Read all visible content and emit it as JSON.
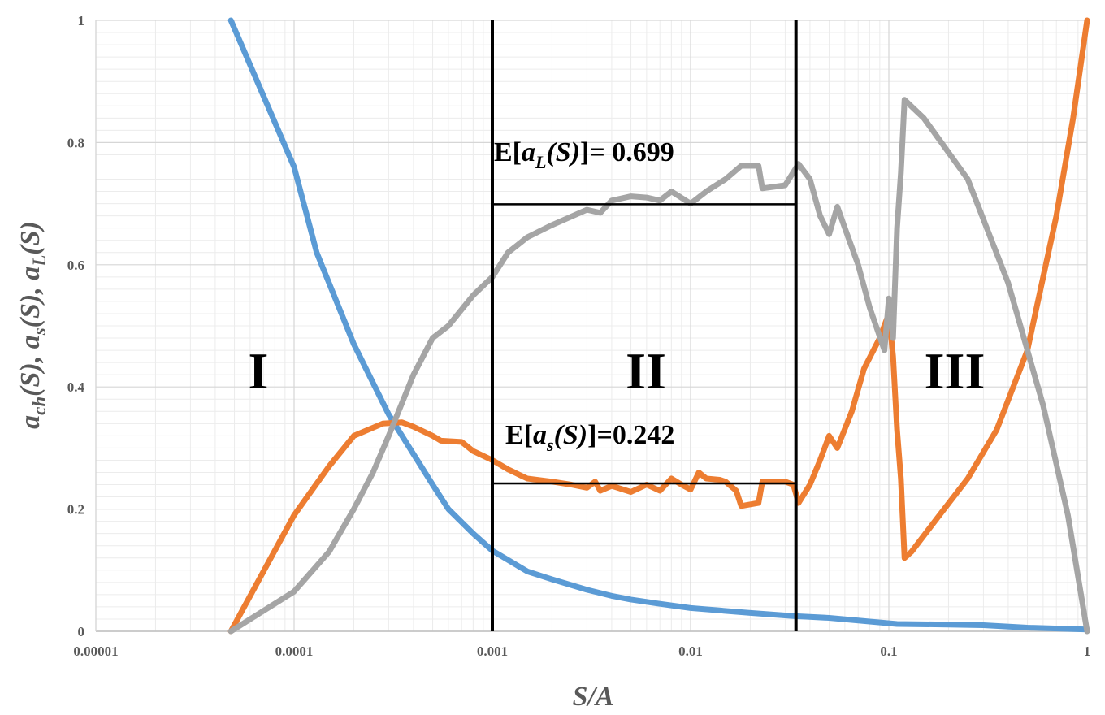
{
  "chart_data": {
    "type": "line",
    "title": "",
    "xlabel": "S/A",
    "ylabel": {
      "parts": [
        {
          "text": "a",
          "sub": "ch",
          "after": "(S), "
        },
        {
          "text": "a",
          "sub": "s",
          "after": "(S), "
        },
        {
          "text": "a",
          "sub": "L",
          "after": "(S)"
        }
      ]
    },
    "xscale": "log",
    "xlim": [
      1e-05,
      1
    ],
    "ylim": [
      0,
      1
    ],
    "xticks": [
      1e-05,
      0.0001,
      0.001,
      0.01,
      0.1,
      1
    ],
    "xtick_labels": [
      "0.00001",
      "0.0001",
      "0.001",
      "0.01",
      "0.1",
      "1"
    ],
    "yticks": [
      0,
      0.2,
      0.4,
      0.6,
      0.8,
      1
    ],
    "ytick_labels": [
      "0",
      "0.2",
      "0.4",
      "0.6",
      "0.8",
      "1"
    ],
    "grid": true,
    "series": [
      {
        "name": "a_ch(S)",
        "color": "#5B9BD5",
        "points": [
          [
            4.8e-05,
            1.0
          ],
          [
            0.0001,
            0.76
          ],
          [
            0.00013,
            0.62
          ],
          [
            0.0002,
            0.47
          ],
          [
            0.0003,
            0.355
          ],
          [
            0.0004,
            0.29
          ],
          [
            0.0005,
            0.24
          ],
          [
            0.0006,
            0.2
          ],
          [
            0.0008,
            0.16
          ],
          [
            0.001,
            0.132
          ],
          [
            0.0013,
            0.11
          ],
          [
            0.0015,
            0.098
          ],
          [
            0.002,
            0.085
          ],
          [
            0.003,
            0.068
          ],
          [
            0.004,
            0.058
          ],
          [
            0.005,
            0.052
          ],
          [
            0.007,
            0.045
          ],
          [
            0.01,
            0.038
          ],
          [
            0.02,
            0.03
          ],
          [
            0.033,
            0.025
          ],
          [
            0.05,
            0.022
          ],
          [
            0.08,
            0.016
          ],
          [
            0.11,
            0.012
          ],
          [
            0.2,
            0.011
          ],
          [
            0.3,
            0.01
          ],
          [
            0.5,
            0.006
          ],
          [
            1.0,
            0.003
          ]
        ]
      },
      {
        "name": "a_s(S)",
        "color": "#ED7D31",
        "points": [
          [
            4.8e-05,
            0.0
          ],
          [
            0.0001,
            0.19
          ],
          [
            0.00015,
            0.27
          ],
          [
            0.0002,
            0.32
          ],
          [
            0.00028,
            0.34
          ],
          [
            0.00035,
            0.342
          ],
          [
            0.0004,
            0.335
          ],
          [
            0.0005,
            0.32
          ],
          [
            0.00055,
            0.312
          ],
          [
            0.0007,
            0.31
          ],
          [
            0.0008,
            0.295
          ],
          [
            0.001,
            0.28
          ],
          [
            0.0012,
            0.265
          ],
          [
            0.0015,
            0.25
          ],
          [
            0.002,
            0.245
          ],
          [
            0.0025,
            0.24
          ],
          [
            0.003,
            0.235
          ],
          [
            0.0033,
            0.245
          ],
          [
            0.0035,
            0.23
          ],
          [
            0.004,
            0.238
          ],
          [
            0.005,
            0.228
          ],
          [
            0.006,
            0.24
          ],
          [
            0.007,
            0.23
          ],
          [
            0.008,
            0.25
          ],
          [
            0.009,
            0.24
          ],
          [
            0.01,
            0.232
          ],
          [
            0.011,
            0.26
          ],
          [
            0.012,
            0.25
          ],
          [
            0.014,
            0.248
          ],
          [
            0.015,
            0.245
          ],
          [
            0.017,
            0.23
          ],
          [
            0.018,
            0.205
          ],
          [
            0.022,
            0.21
          ],
          [
            0.023,
            0.245
          ],
          [
            0.03,
            0.245
          ],
          [
            0.033,
            0.24
          ],
          [
            0.035,
            0.21
          ],
          [
            0.04,
            0.24
          ],
          [
            0.045,
            0.28
          ],
          [
            0.05,
            0.32
          ],
          [
            0.055,
            0.3
          ],
          [
            0.065,
            0.36
          ],
          [
            0.075,
            0.43
          ],
          [
            0.09,
            0.48
          ],
          [
            0.1,
            0.52
          ],
          [
            0.105,
            0.45
          ],
          [
            0.11,
            0.33
          ],
          [
            0.115,
            0.25
          ],
          [
            0.12,
            0.12
          ],
          [
            0.13,
            0.13
          ],
          [
            0.18,
            0.19
          ],
          [
            0.25,
            0.25
          ],
          [
            0.35,
            0.33
          ],
          [
            0.5,
            0.46
          ],
          [
            0.7,
            0.68
          ],
          [
            0.85,
            0.84
          ],
          [
            1.0,
            1.0
          ]
        ]
      },
      {
        "name": "a_L(S)",
        "color": "#A5A5A5",
        "points": [
          [
            4.8e-05,
            0.0
          ],
          [
            0.0001,
            0.065
          ],
          [
            0.00015,
            0.13
          ],
          [
            0.0002,
            0.2
          ],
          [
            0.00025,
            0.26
          ],
          [
            0.0003,
            0.32
          ],
          [
            0.0004,
            0.42
          ],
          [
            0.0005,
            0.48
          ],
          [
            0.0006,
            0.5
          ],
          [
            0.0008,
            0.55
          ],
          [
            0.001,
            0.58
          ],
          [
            0.0012,
            0.62
          ],
          [
            0.0015,
            0.645
          ],
          [
            0.002,
            0.665
          ],
          [
            0.003,
            0.69
          ],
          [
            0.0035,
            0.685
          ],
          [
            0.004,
            0.705
          ],
          [
            0.005,
            0.712
          ],
          [
            0.006,
            0.71
          ],
          [
            0.007,
            0.705
          ],
          [
            0.008,
            0.72
          ],
          [
            0.01,
            0.7
          ],
          [
            0.012,
            0.72
          ],
          [
            0.015,
            0.74
          ],
          [
            0.018,
            0.762
          ],
          [
            0.022,
            0.762
          ],
          [
            0.023,
            0.725
          ],
          [
            0.03,
            0.73
          ],
          [
            0.035,
            0.765
          ],
          [
            0.04,
            0.74
          ],
          [
            0.045,
            0.68
          ],
          [
            0.05,
            0.65
          ],
          [
            0.055,
            0.695
          ],
          [
            0.06,
            0.66
          ],
          [
            0.07,
            0.6
          ],
          [
            0.08,
            0.53
          ],
          [
            0.095,
            0.46
          ],
          [
            0.1,
            0.545
          ],
          [
            0.105,
            0.48
          ],
          [
            0.11,
            0.66
          ],
          [
            0.115,
            0.75
          ],
          [
            0.12,
            0.87
          ],
          [
            0.15,
            0.84
          ],
          [
            0.25,
            0.74
          ],
          [
            0.4,
            0.57
          ],
          [
            0.6,
            0.37
          ],
          [
            0.8,
            0.19
          ],
          [
            1.0,
            0.0
          ]
        ]
      }
    ],
    "vertical_lines": [
      0.001,
      0.034
    ],
    "mean_lines": [
      {
        "series": "a_L(S)",
        "y": 0.699,
        "x_from": 0.001,
        "x_to": 0.034
      },
      {
        "series": "a_s(S)",
        "y": 0.242,
        "x_from": 0.001,
        "x_to": 0.034
      }
    ],
    "annotations": {
      "aL": {
        "pre": "E[",
        "var": "a",
        "sub": "L",
        "mid": "(S)",
        "post": "]= 0.699"
      },
      "as": {
        "pre": "E[",
        "var": "a",
        "sub": "s",
        "mid": "(S)",
        "post": "]=0.242"
      }
    },
    "region_labels": [
      "I",
      "II",
      "III"
    ]
  }
}
